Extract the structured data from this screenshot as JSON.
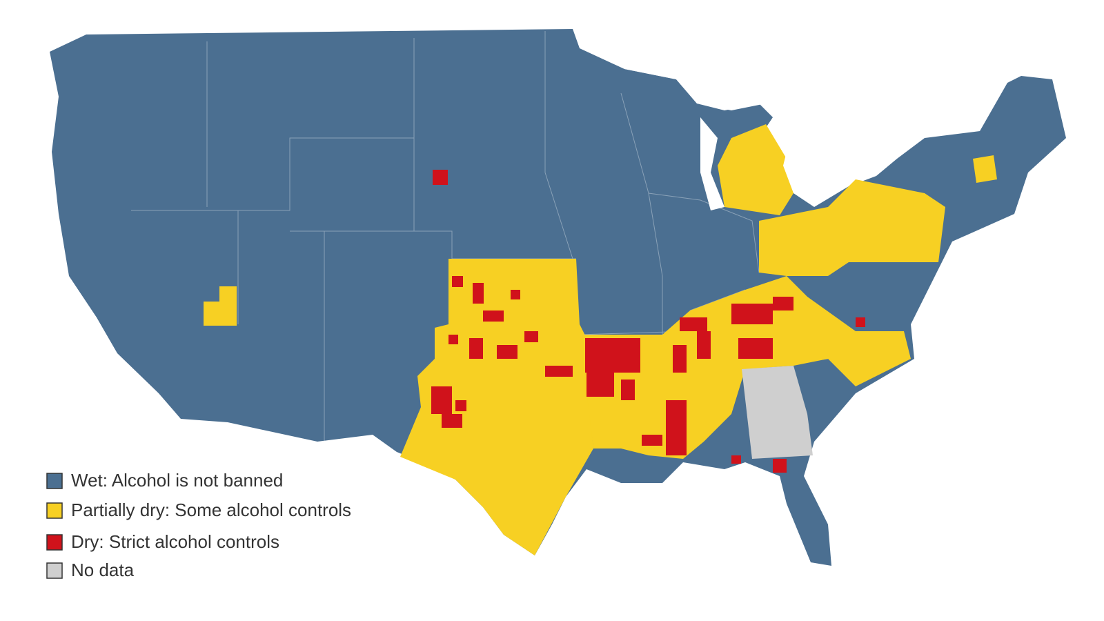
{
  "legend": {
    "items": [
      {
        "label": "Wet: Alcohol is not banned",
        "color": "#4b6f91"
      },
      {
        "label": "Partially dry: Some alcohol controls",
        "color": "#f7d023"
      },
      {
        "label": "Dry: Strict alcohol controls",
        "color": "#d0121b"
      },
      {
        "label": "No data",
        "color": "#cfcfcf"
      }
    ]
  }
}
